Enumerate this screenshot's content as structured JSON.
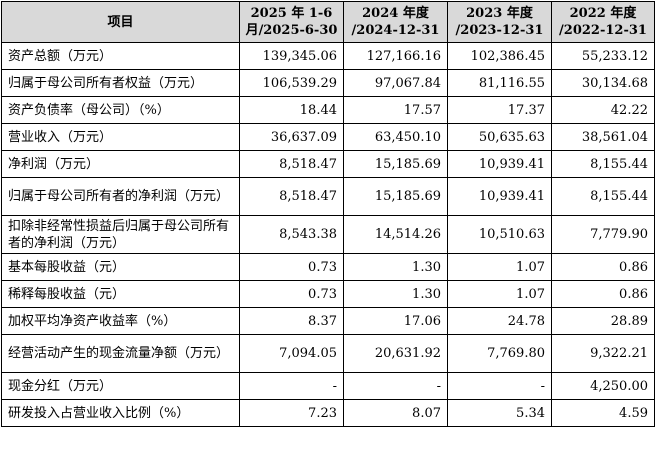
{
  "header": [
    "项目",
    "2025 年 1-6 月/2025-6-30",
    "2024 年度 /2024-12-31",
    "2023 年度 /2023-12-31",
    "2022 年度 /2022-12-31"
  ],
  "rows": [
    {
      "label": "资产总额（万元）",
      "values": [
        "139,345.06",
        "127,166.16",
        "102,386.45",
        "55,233.12"
      ]
    },
    {
      "label": "归属于母公司所有者权益（万元）",
      "values": [
        "106,539.29",
        "97,067.84",
        "81,116.55",
        "30,134.68"
      ]
    },
    {
      "label": "资产负债率（母公司）（%）",
      "values": [
        "18.44",
        "17.57",
        "17.37",
        "42.22"
      ]
    },
    {
      "label": "营业收入（万元）",
      "values": [
        "36,637.09",
        "63,450.10",
        "50,635.63",
        "38,561.04"
      ]
    },
    {
      "label": "净利润（万元）",
      "values": [
        "8,518.47",
        "15,185.69",
        "10,939.41",
        "8,155.44"
      ]
    },
    {
      "label": "归属于母公司所有者的净利润（万元）",
      "values": [
        "8,518.47",
        "15,185.69",
        "10,939.41",
        "8,155.44"
      ]
    },
    {
      "label": "扣除非经常性损益后归属于母公司所有者的净利润（万元）",
      "values": [
        "8,543.38",
        "14,514.26",
        "10,510.63",
        "7,779.90"
      ]
    },
    {
      "label": "基本每股收益（元）",
      "values": [
        "0.73",
        "1.30",
        "1.07",
        "0.86"
      ]
    },
    {
      "label": "稀释每股收益（元）",
      "values": [
        "0.73",
        "1.30",
        "1.07",
        "0.86"
      ]
    },
    {
      "label": "加权平均净资产收益率（%）",
      "values": [
        "8.37",
        "17.06",
        "24.78",
        "28.89"
      ]
    },
    {
      "label": "经营活动产生的现金流量净额（万元）",
      "values": [
        "7,094.05",
        "20,631.92",
        "7,769.80",
        "9,322.21"
      ]
    },
    {
      "label": "现金分红（万元）",
      "values": [
        "-",
        "-",
        "-",
        "4,250.00"
      ]
    },
    {
      "label": "研发投入占营业收入比例（%）",
      "values": [
        "7.23",
        "8.07",
        "5.34",
        "4.59"
      ]
    }
  ]
}
